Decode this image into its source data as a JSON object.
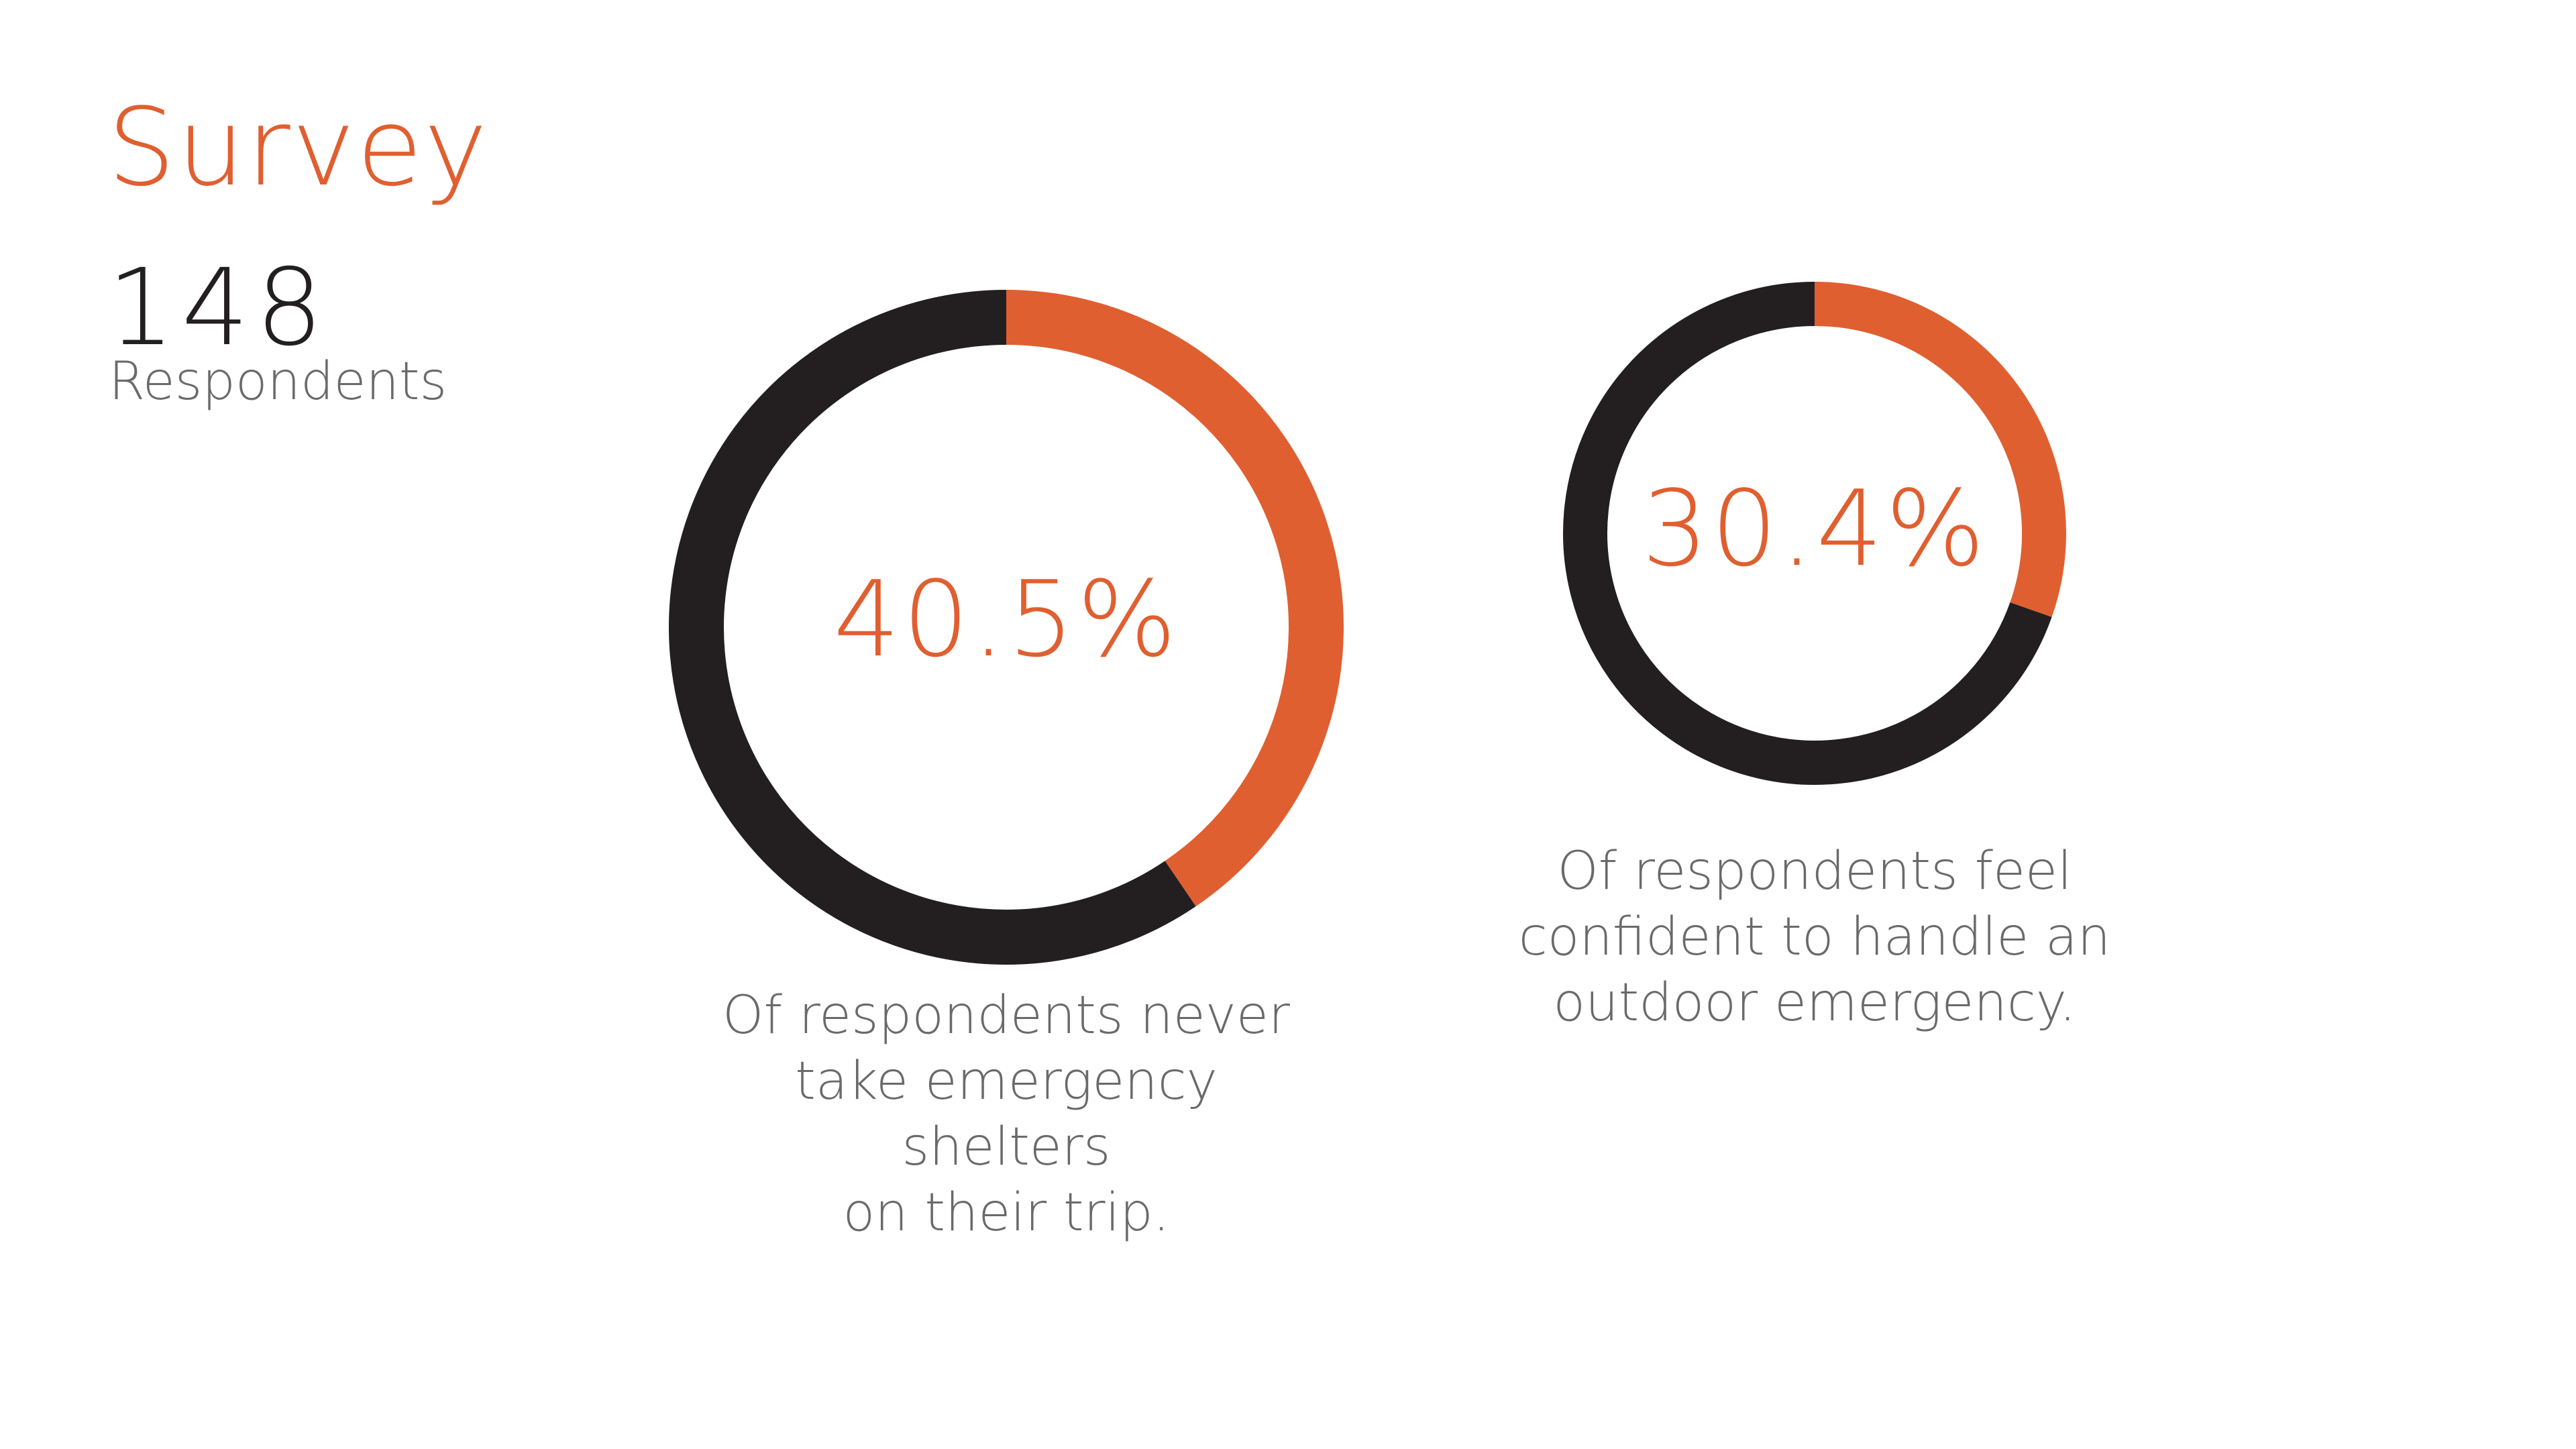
{
  "colors": {
    "accent": "#e05f30",
    "dark": "#231f20",
    "text_dark": "#231f20",
    "text_gray": "#6a6a6a"
  },
  "header": {
    "title": "Survey",
    "count": "148",
    "count_label": "Respondents"
  },
  "chart_data": [
    {
      "type": "donut",
      "value_percent": 40.5,
      "label": "40.5%",
      "caption_lines": [
        "Of respondents never",
        "take emergency",
        "shelters",
        "on their trip."
      ],
      "highlight_color": "#e05f30",
      "remainder_color": "#231f20"
    },
    {
      "type": "donut",
      "value_percent": 30.4,
      "label": "30.4%",
      "caption_lines": [
        "Of respondents feel",
        "confident to handle an",
        "outdoor emergency."
      ],
      "highlight_color": "#e05f30",
      "remainder_color": "#231f20"
    }
  ]
}
